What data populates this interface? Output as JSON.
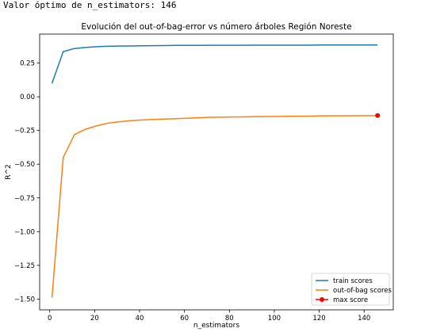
{
  "console_output": "Valor óptimo de n_estimators: 146",
  "chart_data": {
    "type": "line",
    "title": "Evolución del out-of-bag-error vs número árboles Región Noreste",
    "xlabel": "n_estimators",
    "ylabel": "R^2",
    "xlim": [
      -4.5,
      153
    ],
    "ylim": [
      -1.58,
      0.465
    ],
    "xticks": [
      0,
      20,
      40,
      60,
      80,
      100,
      120,
      140
    ],
    "yticks": [
      -1.5,
      -1.25,
      -1.0,
      -0.75,
      -0.5,
      -0.25,
      0.0,
      0.25
    ],
    "ytick_labels": [
      "−1.50",
      "−1.25",
      "−1.00",
      "−0.75",
      "−0.50",
      "−0.25",
      "0.00",
      "0.25"
    ],
    "grid": false,
    "legend_position": "lower-right",
    "series": [
      {
        "name": "train scores",
        "color": "#1f77b4",
        "x": [
          1,
          6,
          11,
          16,
          21,
          26,
          31,
          36,
          41,
          46,
          51,
          56,
          61,
          66,
          71,
          76,
          81,
          86,
          91,
          96,
          101,
          106,
          111,
          116,
          121,
          126,
          131,
          136,
          141,
          146
        ],
        "y": [
          0.1,
          0.335,
          0.358,
          0.366,
          0.372,
          0.375,
          0.376,
          0.377,
          0.378,
          0.379,
          0.38,
          0.381,
          0.381,
          0.381,
          0.382,
          0.382,
          0.382,
          0.382,
          0.383,
          0.383,
          0.383,
          0.383,
          0.383,
          0.383,
          0.384,
          0.384,
          0.384,
          0.384,
          0.384,
          0.384
        ]
      },
      {
        "name": "out-of-bag scores",
        "color": "#ff7f0e",
        "x": [
          1,
          6,
          11,
          16,
          21,
          26,
          31,
          36,
          41,
          46,
          51,
          56,
          61,
          66,
          71,
          76,
          81,
          86,
          91,
          96,
          101,
          106,
          111,
          116,
          121,
          126,
          131,
          136,
          141,
          146
        ],
        "y": [
          -1.49,
          -0.45,
          -0.28,
          -0.24,
          -0.215,
          -0.195,
          -0.185,
          -0.177,
          -0.172,
          -0.168,
          -0.165,
          -0.162,
          -0.159,
          -0.156,
          -0.152,
          -0.151,
          -0.15,
          -0.149,
          -0.148,
          -0.147,
          -0.146,
          -0.145,
          -0.144,
          -0.143,
          -0.142,
          -0.141,
          -0.141,
          -0.14,
          -0.14,
          -0.139
        ]
      },
      {
        "name": "max score",
        "color": "#ff0000",
        "marker": "circle",
        "x": [
          146
        ],
        "y": [
          -0.139
        ]
      }
    ]
  }
}
